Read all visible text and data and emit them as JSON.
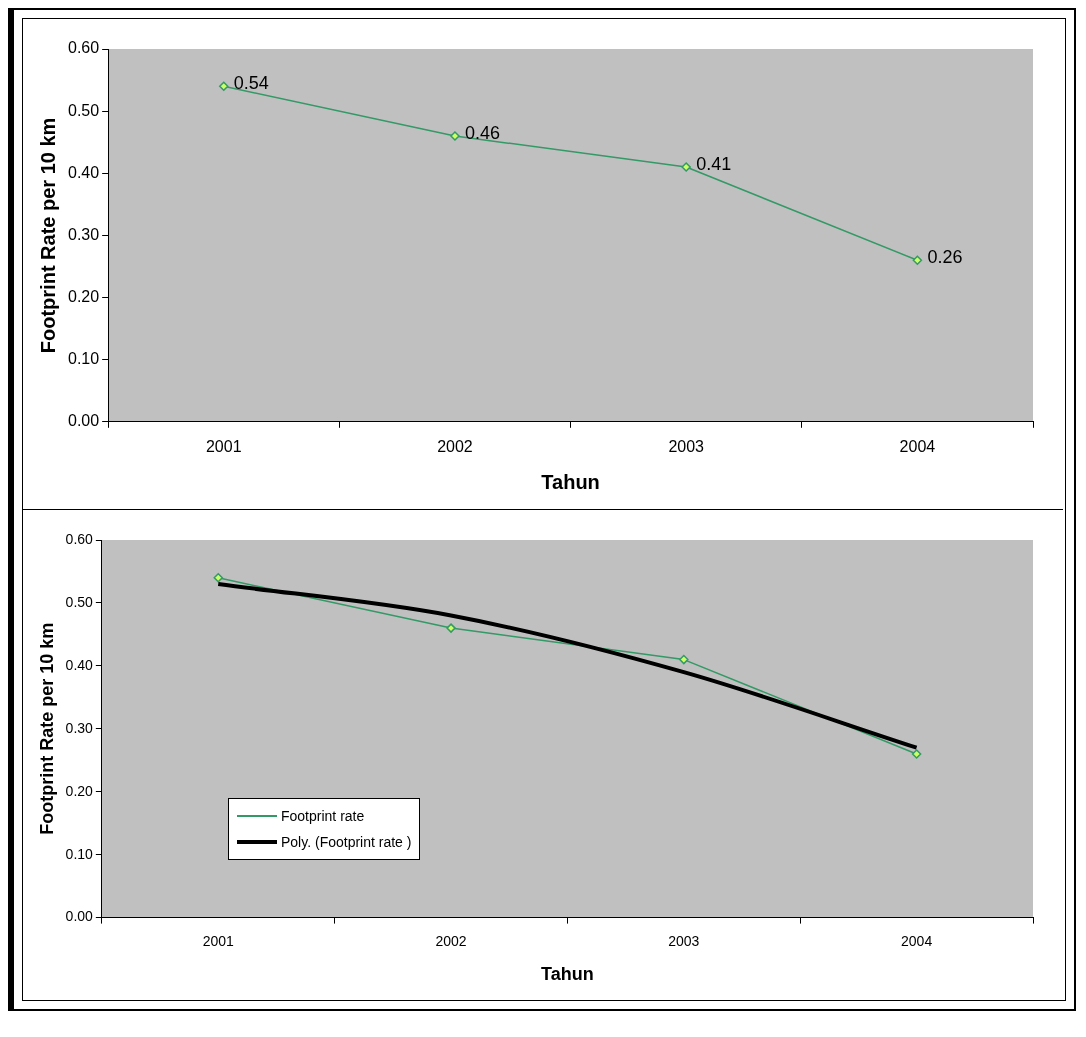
{
  "chart_data": [
    {
      "type": "line",
      "xlabel": "Tahun",
      "ylabel": "Footprint Rate per 10 km",
      "categories": [
        "2001",
        "2002",
        "2003",
        "2004"
      ],
      "series": [
        {
          "color": "#339966",
          "values": [
            0.54,
            0.46,
            0.41,
            0.26
          ]
        }
      ],
      "ylim": [
        0,
        0.6
      ],
      "yticks": [
        {
          "value": 0,
          "label": "0.00"
        },
        {
          "value": 0.1,
          "label": "0.10"
        },
        {
          "value": 0.2,
          "label": "0.20"
        },
        {
          "value": 0.3,
          "label": "0.30"
        },
        {
          "value": 0.4,
          "label": "0.40"
        },
        {
          "value": 0.5,
          "label": "0.50"
        },
        {
          "value": 0.6,
          "label": "0.60"
        }
      ],
      "grid": false,
      "legend": false,
      "marker": "diamond",
      "data_labels": true
    },
    {
      "type": "line",
      "xlabel": "Tahun",
      "ylabel": "Footprint Rate per 10 km",
      "categories": [
        "2001",
        "2002",
        "2003",
        "2004"
      ],
      "series": [
        {
          "name": "Footprint rate",
          "color": "#339966",
          "values": [
            0.54,
            0.46,
            0.41,
            0.26
          ]
        },
        {
          "name": "Poly. (Footprint rate )",
          "type": "line",
          "color": "#000000",
          "marker": "none",
          "values": [
            0.53,
            0.48,
            0.39,
            0.27
          ]
        }
      ],
      "ylim": [
        0,
        0.6
      ],
      "yticks": [
        {
          "value": 0,
          "label": "0.00"
        },
        {
          "value": 0.1,
          "label": "0.10"
        },
        {
          "value": 0.2,
          "label": "0.20"
        },
        {
          "value": 0.3,
          "label": "0.30"
        },
        {
          "value": 0.4,
          "label": "0.40"
        },
        {
          "value": 0.5,
          "label": "0.50"
        },
        {
          "value": 0.6,
          "label": "0.60"
        }
      ],
      "grid": false,
      "legend": "bottom left",
      "marker": "diamond"
    }
  ]
}
